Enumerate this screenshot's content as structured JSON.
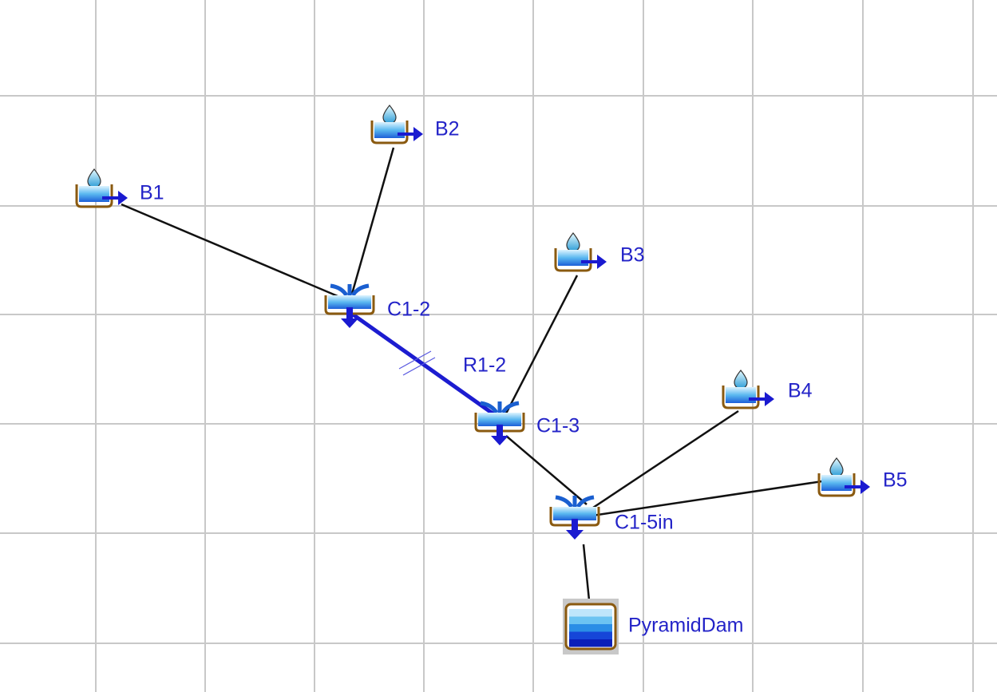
{
  "nodes": [
    {
      "label": "B1"
    },
    {
      "label": "B2"
    },
    {
      "label": "B3"
    },
    {
      "label": "B4"
    },
    {
      "label": "B5"
    },
    {
      "label": "C1-2"
    },
    {
      "label": "C1-3"
    },
    {
      "label": "C1-5in"
    },
    {
      "label": "PyramidDam"
    }
  ],
  "reaches": [
    {
      "label": "R1-2"
    }
  ]
}
